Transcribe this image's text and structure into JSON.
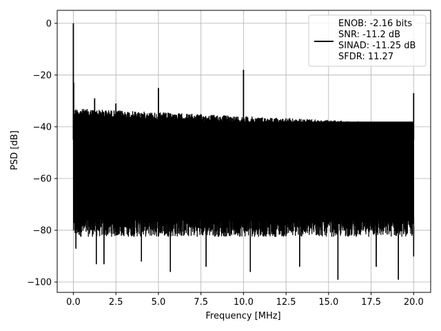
{
  "chart_data": {
    "type": "line",
    "title": "",
    "xlabel": "Frequency [MHz]",
    "ylabel": "PSD [dB]",
    "xlim": [
      -0.95,
      21
    ],
    "ylim": [
      -104,
      5
    ],
    "xticks": [
      0.0,
      2.5,
      5.0,
      7.5,
      10.0,
      12.5,
      15.0,
      17.5,
      20.0
    ],
    "xtick_labels": [
      "0.0",
      "2.5",
      "5.0",
      "7.5",
      "10.0",
      "12.5",
      "15.0",
      "17.5",
      "20.0"
    ],
    "yticks": [
      0,
      -20,
      -40,
      -60,
      -80,
      -100
    ],
    "ytick_labels": [
      "0",
      "−20",
      "−40",
      "−60",
      "−80",
      "−100"
    ],
    "grid": true,
    "legend_position": "top-right",
    "line_color": "#000000",
    "series": [
      {
        "name": "ENOB: -2.16 bits\nSNR: -11.2 dB\nSINAD: -11.25 dB\nSFDR: 11.27",
        "legend_lines": [
          "ENOB: -2.16 bits",
          "SNR: -11.2 dB",
          "SINAD: -11.25 dB",
          "SFDR: 11.27"
        ],
        "noise_band": {
          "x_start": 0.0,
          "x_end": 20.0,
          "upper_start": -33,
          "upper_end": -39,
          "lower_typical": -80
        },
        "spurs": [
          {
            "x": 0.0,
            "y": 0
          },
          {
            "x": 0.02,
            "y": -23
          },
          {
            "x": 1.25,
            "y": -29
          },
          {
            "x": 2.5,
            "y": -31
          },
          {
            "x": 5.0,
            "y": -25
          },
          {
            "x": 10.0,
            "y": -18
          },
          {
            "x": 20.0,
            "y": -27
          }
        ],
        "dips": [
          {
            "x": 0.15,
            "y": -87
          },
          {
            "x": 1.35,
            "y": -93
          },
          {
            "x": 1.8,
            "y": -93
          },
          {
            "x": 4.0,
            "y": -92
          },
          {
            "x": 5.7,
            "y": -96
          },
          {
            "x": 7.8,
            "y": -94
          },
          {
            "x": 10.4,
            "y": -96
          },
          {
            "x": 13.3,
            "y": -94
          },
          {
            "x": 15.55,
            "y": -99
          },
          {
            "x": 17.8,
            "y": -94
          },
          {
            "x": 19.1,
            "y": -99
          },
          {
            "x": 20.0,
            "y": -90
          }
        ]
      }
    ]
  }
}
